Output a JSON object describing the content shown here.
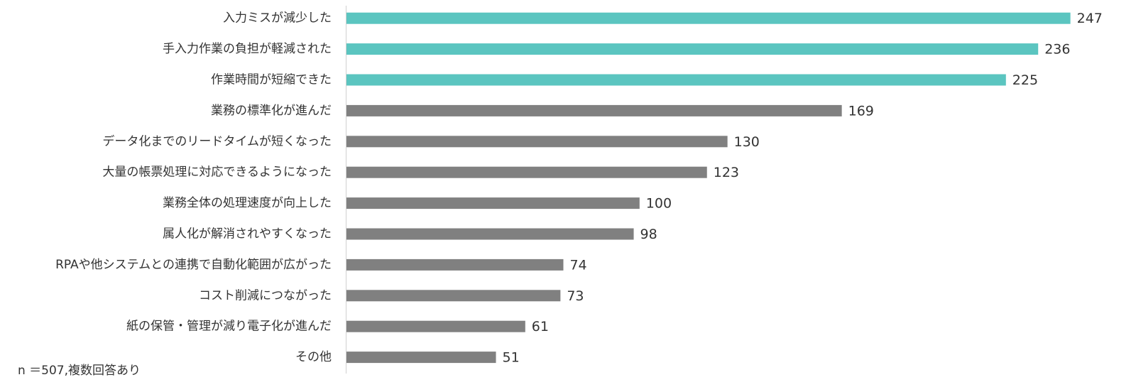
{
  "chart_data": {
    "type": "barh",
    "categories": [
      "入力ミスが減少した",
      "手入力作業の負担が軽減された",
      "作業時間が短縮できた",
      "業務の標準化が進んだ",
      "データ化までのリードタイムが短くなった",
      "大量の帳票処理に対応できるようになった",
      "業務全体の処理速度が向上した",
      "属人化が解消されやすくなった",
      "RPAや他システムとの連携で自動化範囲が広がった",
      "コスト削減につながった",
      "紙の保管・管理が減り電子化が進んだ",
      "その他"
    ],
    "values": [
      247,
      236,
      225,
      169,
      130,
      123,
      100,
      98,
      74,
      73,
      61,
      51
    ],
    "colors": [
      "#5bc5c0",
      "#5bc5c0",
      "#5bc5c0",
      "#808080",
      "#808080",
      "#808080",
      "#808080",
      "#808080",
      "#808080",
      "#808080",
      "#808080",
      "#808080"
    ],
    "xlim": [
      0,
      250
    ],
    "note": "n ＝507,複数回答あり"
  }
}
